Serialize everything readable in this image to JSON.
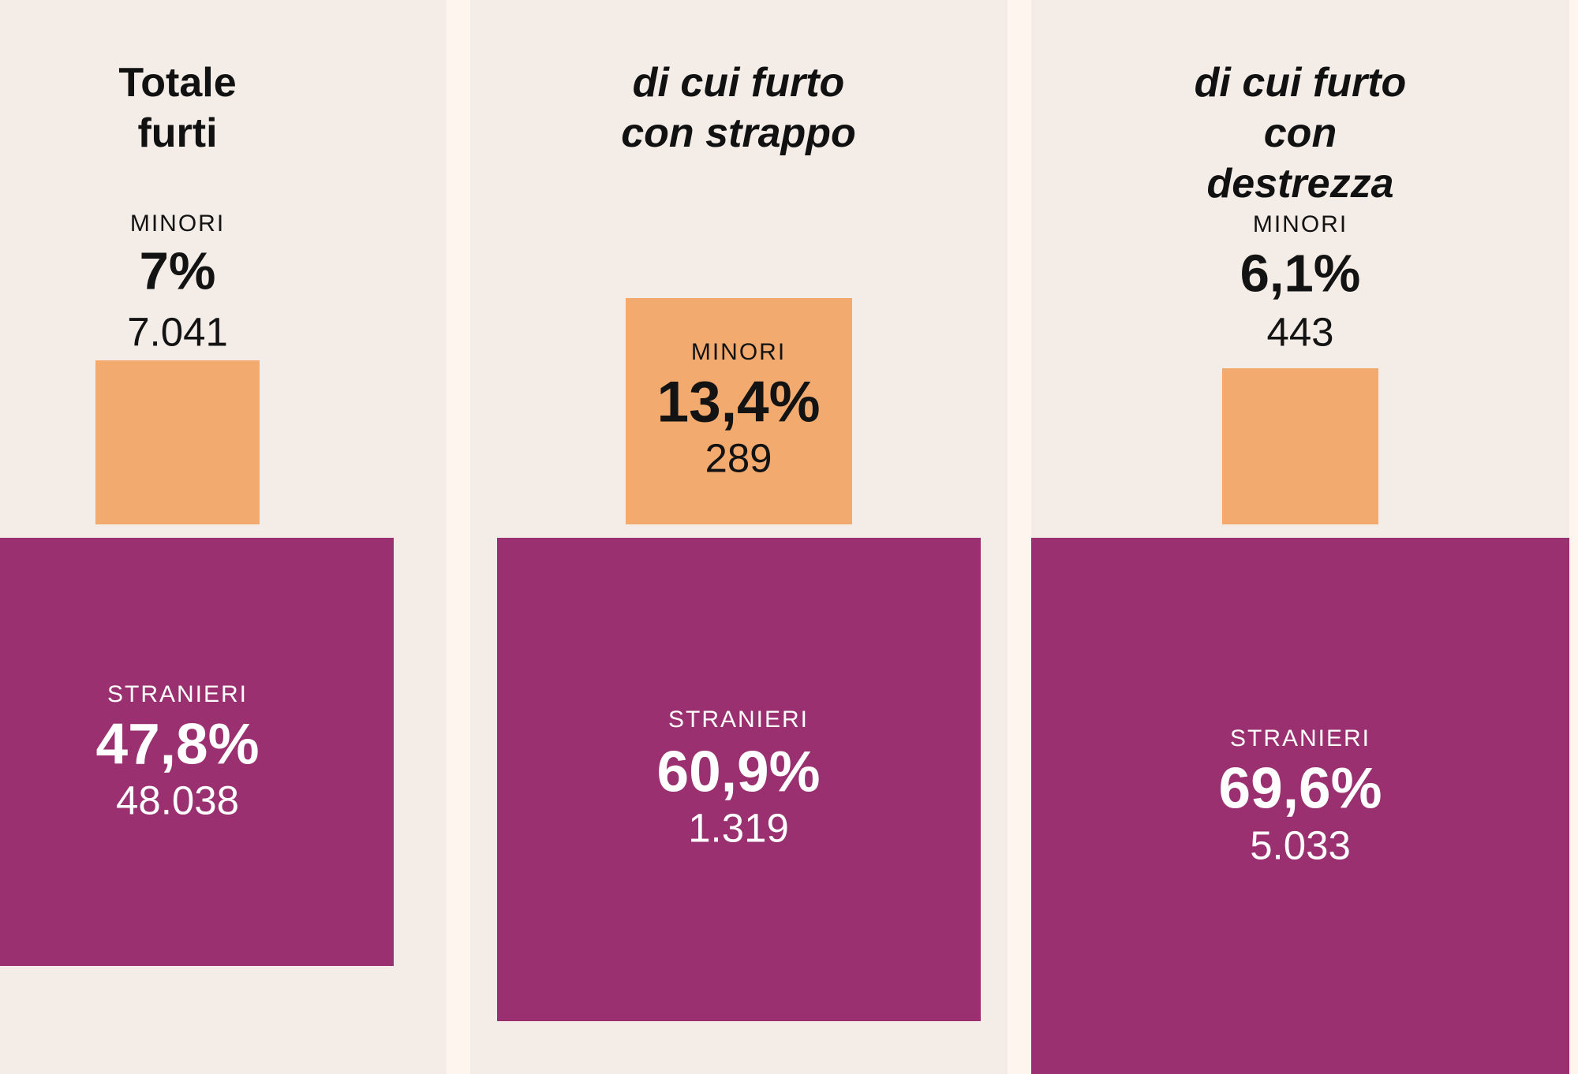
{
  "chart_data": {
    "type": "proportional_squares",
    "categories": [
      "Totale furti",
      "di cui furto con strappo",
      "di cui furto con destrezza"
    ],
    "series": [
      {
        "name": "MINORI",
        "percent_values": [
          7.0,
          13.4,
          6.1
        ],
        "count_values": [
          7041,
          289,
          443
        ]
      },
      {
        "name": "STRANIERI",
        "percent_values": [
          47.8,
          60.9,
          69.6
        ],
        "count_values": [
          48038,
          1319,
          5033
        ]
      }
    ],
    "layout": {
      "panels_count": 3,
      "square_area_proportional_to": "percent",
      "minori_square_alignment": "bottom-aligned above stranieri square",
      "legend": "none",
      "grid": "off"
    },
    "colors": {
      "minori_square": "#F2AA6F",
      "stranieri_square": "#9A3070",
      "panel_background": "#F4ECE7",
      "gutter_background": "#FEF5EE",
      "text_dark": "#131313",
      "text_light": "#FFFFFF"
    },
    "panels": [
      {
        "title_line1": "Totale",
        "title_line2": "furti",
        "minori": {
          "label": "MINORI",
          "percent": "7%",
          "count": "7.041"
        },
        "stranieri": {
          "label": "STRANIERI",
          "percent": "47,8%",
          "count": "48.038"
        }
      },
      {
        "title_line1": "di cui furto",
        "title_line2": "con strappo",
        "minori": {
          "label": "MINORI",
          "percent": "13,4%",
          "count": "289"
        },
        "stranieri": {
          "label": "STRANIERI",
          "percent": "60,9%",
          "count": "1.319"
        }
      },
      {
        "title_line1": "di cui furto",
        "title_line2": "con destrezza",
        "minori": {
          "label": "MINORI",
          "percent": "6,1%",
          "count": "443"
        },
        "stranieri": {
          "label": "STRANIERI",
          "percent": "69,6%",
          "count": "5.033"
        }
      }
    ]
  }
}
